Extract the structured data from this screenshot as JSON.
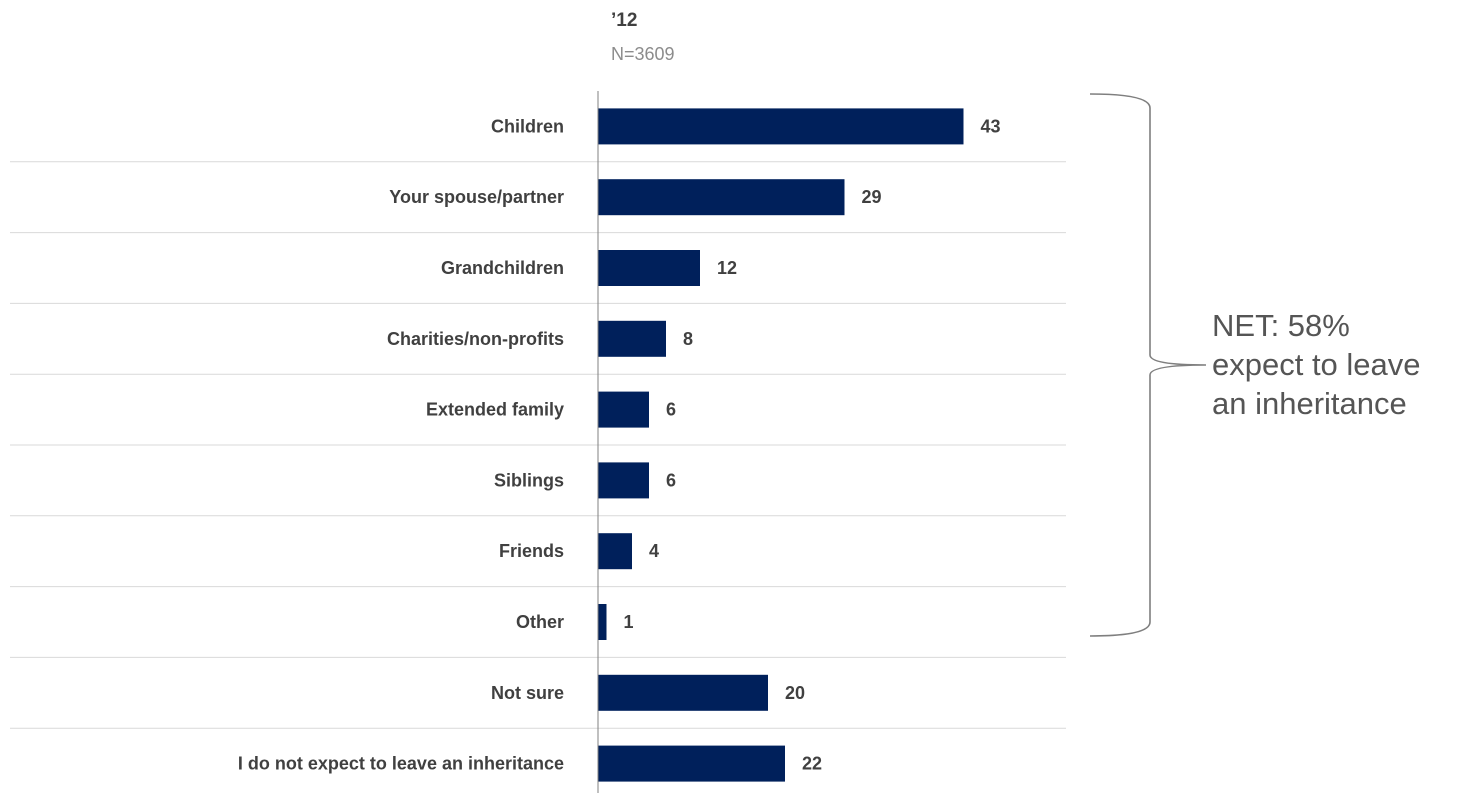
{
  "header": {
    "series_label": "’12",
    "sample_size": "N=3609"
  },
  "annotation": {
    "line1": "NET:  58%",
    "line2": "expect to leave",
    "line3": "an inheritance"
  },
  "colors": {
    "bar": "#00205b",
    "text": "#404040",
    "muted": "#8c8c8c",
    "divider": "#d9d9d9",
    "axis": "#808080",
    "bracket": "#7f7f7f"
  },
  "chart_data": {
    "type": "bar",
    "orientation": "horizontal",
    "categories": [
      "Children",
      "Your spouse/partner",
      "Grandchildren",
      "Charities/non-profits",
      "Extended family",
      "Siblings",
      "Friends",
      "Other",
      "Not sure",
      "I do not expect to leave an inheritance"
    ],
    "values": [
      43,
      29,
      12,
      8,
      6,
      6,
      4,
      1,
      20,
      22
    ],
    "title": "",
    "xlabel": "",
    "ylabel": "",
    "xlim": [
      0,
      50
    ],
    "grid": false,
    "legend": "none"
  }
}
